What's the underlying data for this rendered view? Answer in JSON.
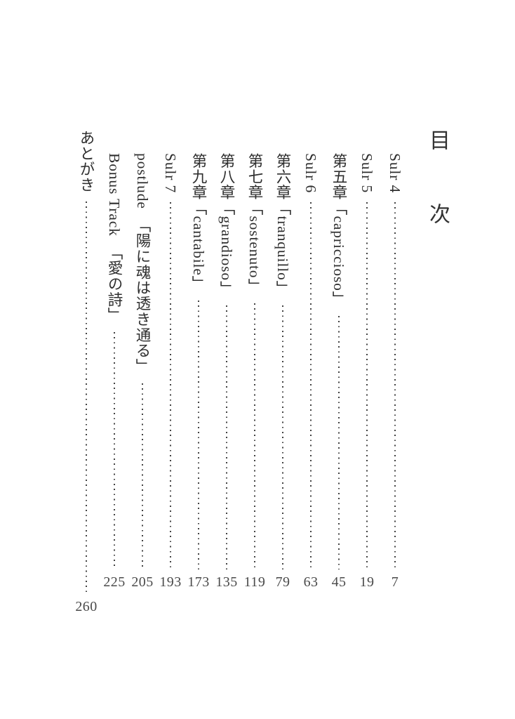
{
  "title": "目　次",
  "entries": [
    {
      "label": "Sulr 4",
      "page": "7"
    },
    {
      "label": "Sulr 5",
      "page": "19"
    },
    {
      "label": "第五章「capriccioso」",
      "page": "45"
    },
    {
      "label": "Sulr 6",
      "page": "63"
    },
    {
      "label": "第六章「tranquillo」",
      "page": "79"
    },
    {
      "label": "第七章「sostenuto」",
      "page": "119"
    },
    {
      "label": "第八章「grandioso」",
      "page": "135"
    },
    {
      "label": "第九章「cantabile」",
      "page": "173"
    },
    {
      "label": "Sulr 7",
      "page": "193"
    },
    {
      "label": "postlude　「陽に魂は透き通る」",
      "page": "205"
    },
    {
      "label": "Bonus Track　「愛の詩」",
      "page": "225"
    },
    {
      "label": "あとがき",
      "page": "260"
    }
  ]
}
